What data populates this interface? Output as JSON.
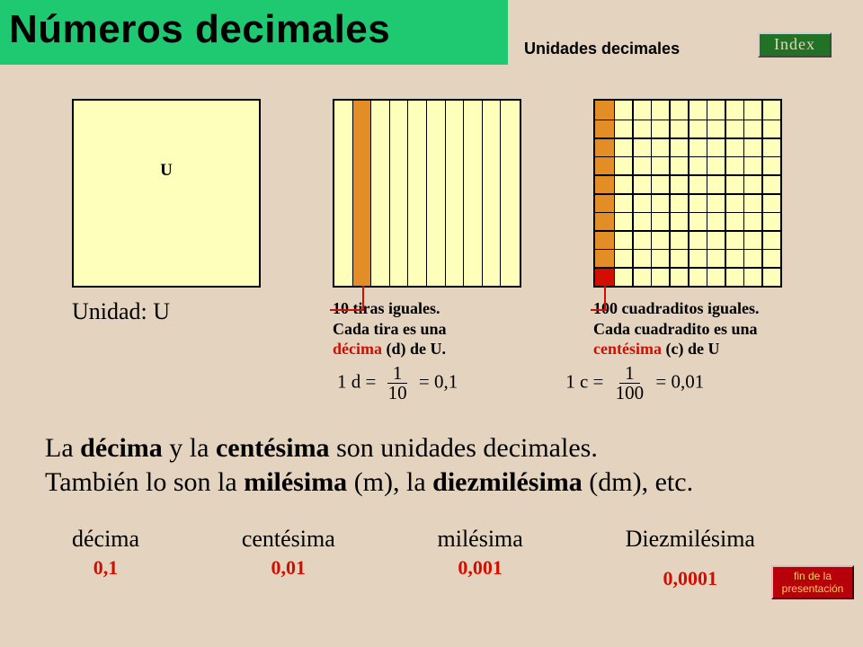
{
  "header": {
    "title": "Números  decimales",
    "subtitle": "Unidades decimales",
    "index_btn": "Index"
  },
  "squares": {
    "unit": {
      "inner_label": "U",
      "caption": "Unidad: U",
      "fill": "#ffffbc"
    },
    "tenths": {
      "caption_l1": "10 tiras iguales.",
      "caption_l2": "Cada tira es una",
      "caption_l3_red": "décima",
      "caption_l3_rest": " (d) de U.",
      "highlight_color": "#e38d26",
      "formula_lhs": "1 d",
      "formula_num": "1",
      "formula_den": "10",
      "formula_rhs": "0,1"
    },
    "hundredths": {
      "caption_l1": "100 cuadraditos iguales.",
      "caption_l2": "Cada cuadradito es una",
      "caption_l3_red": "centésima",
      "caption_l3_rest": " (c) de U",
      "tenth_color": "#e38d26",
      "hundredth_color": "#d30e00",
      "formula_lhs": "1 c",
      "formula_num": "1",
      "formula_den": "100",
      "formula_rhs": "0,01"
    }
  },
  "body": {
    "line1_a": "La ",
    "line1_b": "décima",
    "line1_c": " y la ",
    "line1_d": "centésima",
    "line1_e": " son unidades decimales.",
    "line2_a": "También lo son la ",
    "line2_b": "milésima",
    "line2_c": " (m), la ",
    "line2_d": "diezmilésima",
    "line2_e": " (dm), etc."
  },
  "units": [
    {
      "label": "décima",
      "value": "0,1"
    },
    {
      "label": "centésima",
      "value": "0,01"
    },
    {
      "label": "milésima",
      "value": "0,001"
    },
    {
      "label": "Diezmilésima",
      "value": "0,0001"
    }
  ],
  "footer": {
    "fin_l1": "fin de la",
    "fin_l2": "presentación"
  },
  "colors": {
    "background": "#e4d4bf",
    "title_bg": "#1ec971",
    "red": "#d30e00"
  }
}
